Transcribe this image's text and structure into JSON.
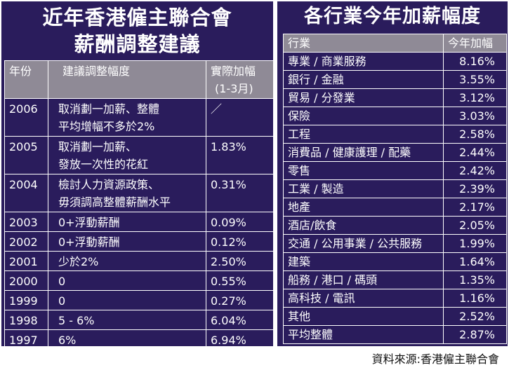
{
  "left": {
    "title_line1": "近年香港僱主聯合會",
    "title_line2": "薪酬調整建議",
    "headers": {
      "year": "年份",
      "suggest": "建議調整幅度",
      "actual_1": "實際加幅",
      "actual_2": "(1-3月)"
    },
    "rows": [
      {
        "year": "2006",
        "suggest_1": "取消劃一加薪、整體",
        "suggest_2": "平均增幅不多於2%",
        "actual": "／"
      },
      {
        "year": "2005",
        "suggest_1": "取消劃一加薪、",
        "suggest_2": "發放一次性的花紅",
        "actual": "1.83%"
      },
      {
        "year": "2004",
        "suggest_1": "檢討人力資源政策、",
        "suggest_2": "毋須調高整體薪酬水平",
        "actual": "0.31%"
      },
      {
        "year": "2003",
        "suggest_1": "0+浮動薪酬",
        "suggest_2": "",
        "actual": "0.09%"
      },
      {
        "year": "2002",
        "suggest_1": "0+浮動薪酬",
        "suggest_2": "",
        "actual": "0.12%"
      },
      {
        "year": "2001",
        "suggest_1": "少於2%",
        "suggest_2": "",
        "actual": "2.50%"
      },
      {
        "year": "2000",
        "suggest_1": "0",
        "suggest_2": "",
        "actual": "0.55%"
      },
      {
        "year": "1999",
        "suggest_1": "0",
        "suggest_2": "",
        "actual": "0.27%"
      },
      {
        "year": "1998",
        "suggest_1": "5 - 6%",
        "suggest_2": "",
        "actual": "6.04%"
      },
      {
        "year": "1997",
        "suggest_1": "6%",
        "suggest_2": "",
        "actual": "6.94%"
      }
    ]
  },
  "right": {
    "title": "各行業今年加薪幅度",
    "headers": {
      "industry": "行業",
      "rate": "今年加幅"
    },
    "rows": [
      {
        "industry": "專業 / 商業服務",
        "rate": "8.16%"
      },
      {
        "industry": "銀行 / 金融",
        "rate": "3.55%"
      },
      {
        "industry": "貿易 / 分發業",
        "rate": "3.12%"
      },
      {
        "industry": "保險",
        "rate": "3.03%"
      },
      {
        "industry": "工程",
        "rate": "2.58%"
      },
      {
        "industry": "消費品 / 健康護理 / 配藥",
        "rate": "2.44%"
      },
      {
        "industry": "零售",
        "rate": "2.42%"
      },
      {
        "industry": "工業 / 製造",
        "rate": "2.39%"
      },
      {
        "industry": "地產",
        "rate": "2.17%"
      },
      {
        "industry": "酒店/飲食",
        "rate": "2.05%"
      },
      {
        "industry": "交通 / 公用事業 / 公共服務",
        "rate": "1.99%"
      },
      {
        "industry": "建築",
        "rate": "1.64%"
      },
      {
        "industry": "船務 / 港口 / 碼頭",
        "rate": "1.35%"
      },
      {
        "industry": "高科技 / 電訊",
        "rate": "1.16%"
      },
      {
        "industry": "其他",
        "rate": "2.52%"
      },
      {
        "industry": "平均整體",
        "rate": "2.87%"
      }
    ]
  },
  "source": "資料來源:香港僱主聯合會"
}
